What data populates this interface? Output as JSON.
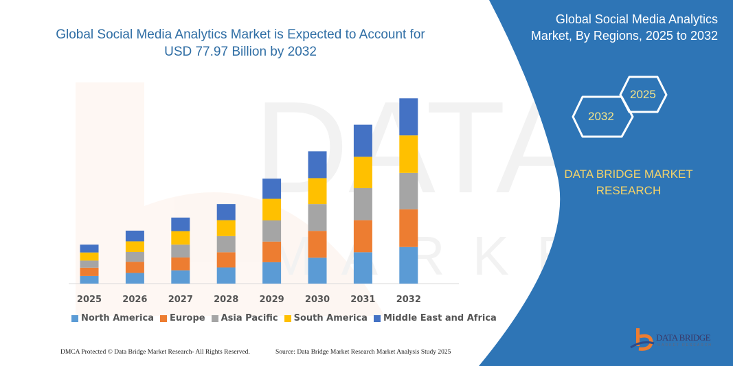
{
  "title": "Global Social Media Analytics Market is Expected to Account for USD 77.97 Billion by 2032",
  "title_line1": "Global Social Media Analytics Market is Expected to Account for",
  "title_line2": "USD 77.97 Billion by 2032",
  "side_panel": {
    "title_line1": "Global Social Media Analytics",
    "title_line2": "Market, By Regions, 2025 to 2032",
    "hex_start": "2025",
    "hex_end": "2032",
    "brand_line1": "DATA BRIDGE MARKET",
    "brand_line2": "RESEARCH",
    "logo_text": "DATA BRIDGE",
    "logo_sub": "MARKET RESEARCH",
    "panel_color": "#2e75b6"
  },
  "footer": {
    "left": "DMCA Protected © Data Bridge Market Research-  All Rights Reserved.",
    "right": "Source: Data Bridge Market Research  Market Analysis Study 2025"
  },
  "chart_data": {
    "type": "bar",
    "stacked": true,
    "title": "Global Social Media Analytics Market is Expected to Account for USD 77.97 Billion by 2032",
    "xlabel": "",
    "ylabel": "",
    "y_axis_visible": false,
    "grid": false,
    "legend_placement": "bottom",
    "ylim": [
      0,
      80
    ],
    "categories": [
      "2025",
      "2026",
      "2027",
      "2028",
      "2029",
      "2030",
      "2031",
      "2032"
    ],
    "series": [
      {
        "name": "North America",
        "color": "#5b9bd5",
        "values": [
          3.2,
          4.5,
          5.6,
          6.8,
          9.0,
          10.9,
          13.2,
          15.4
        ]
      },
      {
        "name": "Europe",
        "color": "#ed7d31",
        "values": [
          3.5,
          4.7,
          5.4,
          6.4,
          8.7,
          11.3,
          13.5,
          15.9
        ]
      },
      {
        "name": "Asia Pacific",
        "color": "#a5a5a5",
        "values": [
          3.0,
          4.1,
          5.4,
          6.8,
          8.9,
          11.3,
          13.5,
          15.3
        ]
      },
      {
        "name": "South America",
        "color": "#ffc000",
        "values": [
          3.4,
          4.5,
          5.7,
          6.7,
          9.1,
          10.9,
          13.2,
          15.8
        ]
      },
      {
        "name": "Middle East and Africa",
        "color": "#4472c4",
        "values": [
          3.3,
          4.5,
          5.7,
          6.8,
          8.5,
          11.3,
          13.5,
          15.6
        ]
      }
    ]
  }
}
